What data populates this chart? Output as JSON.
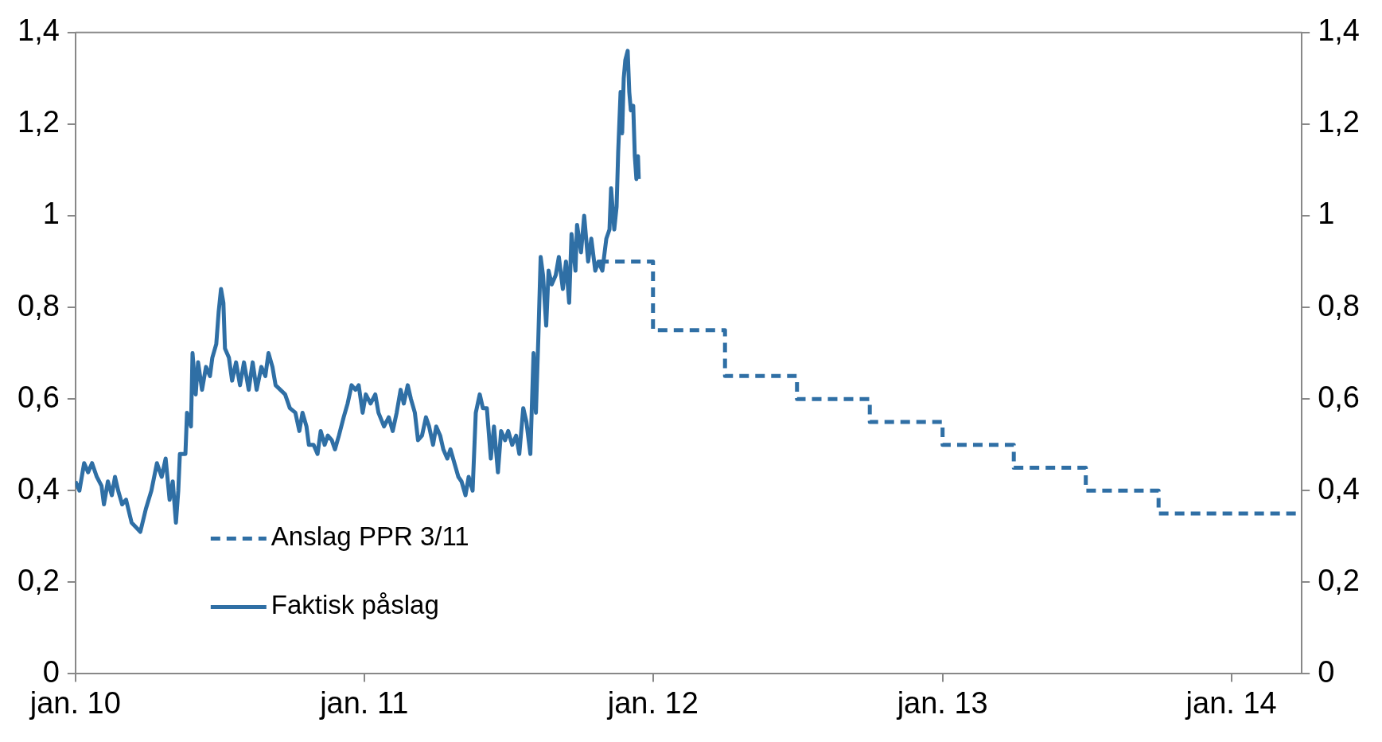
{
  "chart_data": {
    "type": "line",
    "legend": "bottom left",
    "grid": false,
    "xlim": [
      "2010-01-01",
      "2014-03-31"
    ],
    "xticks": [
      {
        "value": "2010-01",
        "label": "jan. 10"
      },
      {
        "value": "2011-01",
        "label": "jan. 11"
      },
      {
        "value": "2012-01",
        "label": "jan. 12"
      },
      {
        "value": "2013-01",
        "label": "jan. 13"
      },
      {
        "value": "2014-01",
        "label": "jan. 14"
      }
    ],
    "ylim": [
      0,
      1.4
    ],
    "yticks": [
      0,
      {
        "value": 0.2,
        "label": "0,2"
      },
      {
        "value": 0.4,
        "label": "0,4"
      },
      {
        "value": 0.6,
        "label": "0,6"
      },
      {
        "value": 0.8,
        "label": "0,8"
      },
      1,
      {
        "value": 1.2,
        "label": "1,2"
      },
      {
        "value": 1.4,
        "label": "1,4"
      }
    ],
    "y2lim": [
      0,
      1.4
    ],
    "y2ticks": [
      0,
      {
        "value": 0.2,
        "label": "0,2"
      },
      {
        "value": 0.4,
        "label": "0,4"
      },
      {
        "value": 0.6,
        "label": "0,6"
      },
      {
        "value": 0.8,
        "label": "0,8"
      },
      1,
      {
        "value": 1.2,
        "label": "1,2"
      },
      {
        "value": 1.4,
        "label": "1,4"
      }
    ],
    "series": [
      {
        "name": "Anslag PPR 3/11",
        "type": "step",
        "line_style": "dashed",
        "color": "#2f6fa5",
        "x": [
          "2011-10-25",
          "2012-01-01",
          "2012-04-01",
          "2012-07-01",
          "2012-10-01",
          "2013-01-01",
          "2013-04-01",
          "2013-07-01",
          "2013-10-01",
          "2014-03-31"
        ],
        "values": [
          0.9,
          0.75,
          0.65,
          0.6,
          0.55,
          0.5,
          0.45,
          0.4,
          0.35,
          0.35
        ]
      },
      {
        "name": "Faktisk påslag",
        "type": "line",
        "line_style": "solid",
        "color": "#2f6fa5",
        "x": [
          "2010-01-01",
          "2010-01-06",
          "2010-01-12",
          "2010-01-17",
          "2010-01-22",
          "2010-01-28",
          "2010-02-03",
          "2010-02-06",
          "2010-02-11",
          "2010-02-16",
          "2010-02-20",
          "2010-02-24",
          "2010-03-01",
          "2010-03-06",
          "2010-03-13",
          "2010-03-24",
          "2010-03-31",
          "2010-04-07",
          "2010-04-14",
          "2010-04-20",
          "2010-04-25",
          "2010-04-30",
          "2010-05-04",
          "2010-05-08",
          "2010-05-11",
          "2010-05-13",
          "2010-05-20",
          "2010-05-22",
          "2010-05-27",
          "2010-05-29",
          "2010-06-02",
          "2010-06-05",
          "2010-06-10",
          "2010-06-15",
          "2010-06-20",
          "2010-06-23",
          "2010-06-28",
          "2010-07-01",
          "2010-07-04",
          "2010-07-07",
          "2010-07-09",
          "2010-07-14",
          "2010-07-18",
          "2010-07-23",
          "2010-07-28",
          "2010-08-02",
          "2010-08-08",
          "2010-08-13",
          "2010-08-18",
          "2010-08-24",
          "2010-08-29",
          "2010-09-02",
          "2010-09-07",
          "2010-09-11",
          "2010-09-17",
          "2010-09-23",
          "2010-09-29",
          "2010-10-06",
          "2010-10-11",
          "2010-10-15",
          "2010-10-20",
          "2010-10-23",
          "2010-10-29",
          "2010-11-03",
          "2010-11-07",
          "2010-11-12",
          "2010-11-16",
          "2010-11-21",
          "2010-11-25",
          "2010-11-30",
          "2010-12-06",
          "2010-12-11",
          "2010-12-16",
          "2010-12-21",
          "2010-12-25",
          "2010-12-30",
          "2011-01-03",
          "2011-01-09",
          "2011-01-15",
          "2011-01-19",
          "2011-01-26",
          "2011-02-01",
          "2011-02-06",
          "2011-02-11",
          "2011-02-16",
          "2011-02-20",
          "2011-02-25",
          "2011-03-01",
          "2011-03-06",
          "2011-03-10",
          "2011-03-15",
          "2011-03-20",
          "2011-03-24",
          "2011-03-29",
          "2011-04-02",
          "2011-04-07",
          "2011-04-11",
          "2011-04-16",
          "2011-04-20",
          "2011-04-25",
          "2011-04-30",
          "2011-05-04",
          "2011-05-09",
          "2011-05-13",
          "2011-05-18",
          "2011-05-22",
          "2011-05-27",
          "2011-05-31",
          "2011-06-05",
          "2011-06-10",
          "2011-06-14",
          "2011-06-19",
          "2011-06-23",
          "2011-06-28",
          "2011-07-02",
          "2011-07-07",
          "2011-07-12",
          "2011-07-16",
          "2011-07-21",
          "2011-07-25",
          "2011-07-30",
          "2011-08-03",
          "2011-08-06",
          "2011-08-09",
          "2011-08-12",
          "2011-08-15",
          "2011-08-19",
          "2011-08-22",
          "2011-08-26",
          "2011-08-31",
          "2011-09-04",
          "2011-09-09",
          "2011-09-13",
          "2011-09-17",
          "2011-09-20",
          "2011-09-25",
          "2011-09-27",
          "2011-10-02",
          "2011-10-06",
          "2011-10-11",
          "2011-10-15",
          "2011-10-20",
          "2011-10-24",
          "2011-10-29",
          "2011-11-03",
          "2011-11-07",
          "2011-11-09",
          "2011-11-13",
          "2011-11-16",
          "2011-11-18",
          "2011-11-21",
          "2011-11-23",
          "2011-11-25",
          "2011-11-27",
          "2011-11-30",
          "2011-12-02",
          "2011-12-04",
          "2011-12-07",
          "2011-12-09",
          "2011-12-11",
          "2011-12-13",
          "2011-12-14"
        ],
        "values": [
          0.42,
          0.4,
          0.46,
          0.44,
          0.46,
          0.43,
          0.41,
          0.37,
          0.42,
          0.39,
          0.43,
          0.4,
          0.37,
          0.38,
          0.33,
          0.31,
          0.36,
          0.4,
          0.46,
          0.43,
          0.47,
          0.38,
          0.42,
          0.33,
          0.4,
          0.48,
          0.48,
          0.57,
          0.54,
          0.7,
          0.61,
          0.68,
          0.62,
          0.67,
          0.65,
          0.69,
          0.72,
          0.79,
          0.84,
          0.81,
          0.71,
          0.69,
          0.64,
          0.68,
          0.63,
          0.68,
          0.62,
          0.68,
          0.62,
          0.67,
          0.65,
          0.7,
          0.67,
          0.63,
          0.62,
          0.61,
          0.58,
          0.57,
          0.53,
          0.57,
          0.54,
          0.5,
          0.5,
          0.48,
          0.53,
          0.5,
          0.52,
          0.51,
          0.49,
          0.52,
          0.56,
          0.59,
          0.63,
          0.62,
          0.63,
          0.57,
          0.61,
          0.59,
          0.61,
          0.57,
          0.54,
          0.56,
          0.53,
          0.57,
          0.62,
          0.59,
          0.63,
          0.6,
          0.57,
          0.51,
          0.52,
          0.56,
          0.54,
          0.5,
          0.54,
          0.52,
          0.49,
          0.47,
          0.49,
          0.46,
          0.43,
          0.42,
          0.39,
          0.43,
          0.4,
          0.57,
          0.61,
          0.58,
          0.58,
          0.47,
          0.54,
          0.44,
          0.53,
          0.51,
          0.53,
          0.5,
          0.52,
          0.48,
          0.58,
          0.55,
          0.48,
          0.7,
          0.57,
          0.73,
          0.91,
          0.87,
          0.76,
          0.88,
          0.85,
          0.87,
          0.91,
          0.84,
          0.9,
          0.81,
          0.96,
          0.88,
          0.98,
          0.92,
          1.0,
          0.9,
          0.95,
          0.88,
          0.9,
          0.88,
          0.95,
          0.97,
          1.06,
          0.97,
          1.02,
          1.14,
          1.27,
          1.18,
          1.3,
          1.34,
          1.36,
          1.27,
          1.23,
          1.24,
          1.13,
          1.08,
          1.13,
          1.08
        ]
      }
    ]
  }
}
